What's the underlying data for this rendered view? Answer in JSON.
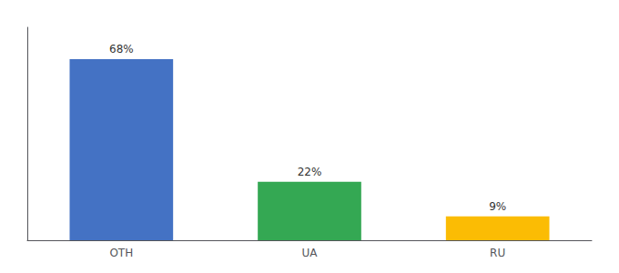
{
  "chart_data": {
    "type": "bar",
    "categories": [
      "OTH",
      "UA",
      "RU"
    ],
    "values": [
      68,
      22,
      9
    ],
    "value_labels": [
      "68%",
      "22%",
      "9%"
    ],
    "data_labels": true,
    "colors": [
      "#4472C4",
      "#34A853",
      "#FBBC04"
    ],
    "ylim": [
      0,
      80
    ],
    "grid": false,
    "tick_labels": "x"
  }
}
